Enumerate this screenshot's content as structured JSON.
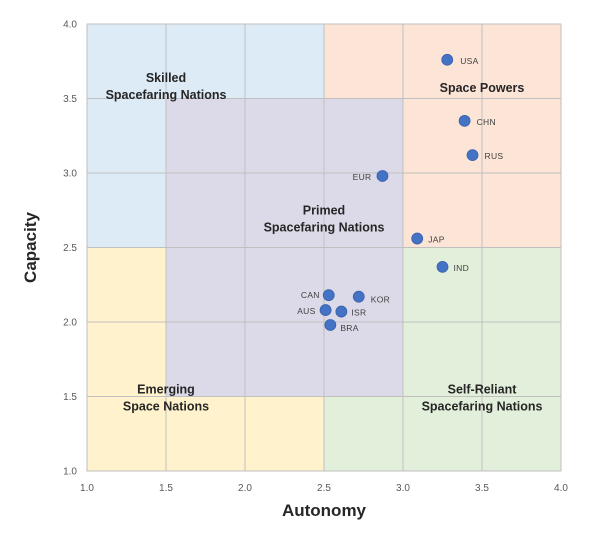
{
  "chart_data": {
    "type": "scatter",
    "xlabel": "Autonomy",
    "ylabel": "Capacity",
    "xlim": [
      1.0,
      4.0
    ],
    "ylim": [
      1.0,
      4.0
    ],
    "x_ticks": [
      "1.0",
      "1.5",
      "2.0",
      "2.5",
      "3.0",
      "3.5",
      "4.0"
    ],
    "y_ticks": [
      "1.0",
      "1.5",
      "2.0",
      "2.5",
      "3.0",
      "3.5",
      "4.0"
    ],
    "grid": true,
    "colors": {
      "point": "#4472C4",
      "skilled": "#DDEBF7",
      "space_powers": "#FCE4D6",
      "emerging": "#FFF2CC",
      "self_reliant": "#E2EFDA",
      "primed": "#DCDAE8",
      "grid": "#C0C0C0"
    },
    "regions": [
      {
        "id": "skilled",
        "label_lines": [
          "Skilled",
          "Spacefaring Nations"
        ]
      },
      {
        "id": "space-powers",
        "label_lines": [
          "Space Powers"
        ]
      },
      {
        "id": "primed",
        "label_lines": [
          "Primed",
          "Spacefaring Nations"
        ]
      },
      {
        "id": "emerging",
        "label_lines": [
          "Emerging",
          "Space Nations"
        ]
      },
      {
        "id": "self-reliant",
        "label_lines": [
          "Self-Reliant",
          "Spacefaring Nations"
        ]
      }
    ],
    "points": [
      {
        "label": "USA",
        "x": 3.28,
        "y": 3.76
      },
      {
        "label": "CHN",
        "x": 3.39,
        "y": 3.35
      },
      {
        "label": "RUS",
        "x": 3.44,
        "y": 3.12
      },
      {
        "label": "EUR",
        "x": 2.87,
        "y": 2.98
      },
      {
        "label": "JAP",
        "x": 3.09,
        "y": 2.56
      },
      {
        "label": "IND",
        "x": 3.25,
        "y": 2.37
      },
      {
        "label": "CAN",
        "x": 2.53,
        "y": 2.18
      },
      {
        "label": "KOR",
        "x": 2.72,
        "y": 2.17
      },
      {
        "label": "AUS",
        "x": 2.51,
        "y": 2.08
      },
      {
        "label": "ISR",
        "x": 2.61,
        "y": 2.07
      },
      {
        "label": "BRA",
        "x": 2.54,
        "y": 1.98
      }
    ]
  }
}
